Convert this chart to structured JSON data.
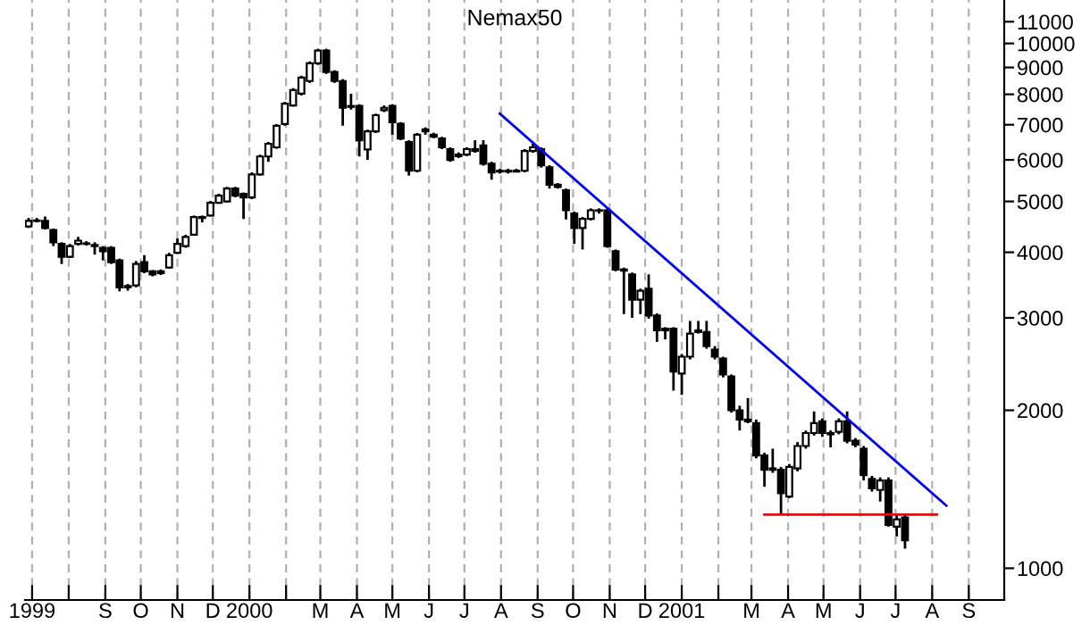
{
  "chart_data": {
    "type": "candlestick",
    "title": "Nemax50",
    "log": "y",
    "grid": "x",
    "legend": false,
    "xlim": [
      "1999-06-25",
      "2001-10-01"
    ],
    "xticks": [
      {
        "value": "1999-07-01",
        "label": "1999"
      },
      {
        "value": "1999-08-01",
        "label": null
      },
      {
        "value": "1999-09-01",
        "label": "S"
      },
      {
        "value": "1999-10-01",
        "label": "O"
      },
      {
        "value": "1999-11-01",
        "label": "N"
      },
      {
        "value": "1999-12-01",
        "label": "D"
      },
      {
        "value": "2000-01-01",
        "label": "2000"
      },
      {
        "value": "2000-02-01",
        "label": null
      },
      {
        "value": "2000-03-01",
        "label": "M"
      },
      {
        "value": "2000-04-01",
        "label": "A"
      },
      {
        "value": "2000-05-01",
        "label": "M"
      },
      {
        "value": "2000-06-01",
        "label": "J"
      },
      {
        "value": "2000-07-01",
        "label": "J"
      },
      {
        "value": "2000-08-01",
        "label": "A"
      },
      {
        "value": "2000-09-01",
        "label": "S"
      },
      {
        "value": "2000-10-01",
        "label": "O"
      },
      {
        "value": "2000-11-01",
        "label": "N"
      },
      {
        "value": "2000-12-01",
        "label": "D"
      },
      {
        "value": "2001-01-01",
        "label": "2001"
      },
      {
        "value": "2001-02-01",
        "label": null
      },
      {
        "value": "2001-03-01",
        "label": "M"
      },
      {
        "value": "2001-04-01",
        "label": "A"
      },
      {
        "value": "2001-05-01",
        "label": "M"
      },
      {
        "value": "2001-06-01",
        "label": "J"
      },
      {
        "value": "2001-07-01",
        "label": "J"
      },
      {
        "value": "2001-08-01",
        "label": "A"
      },
      {
        "value": "2001-09-01",
        "label": "S"
      }
    ],
    "ylim": [
      870,
      12100
    ],
    "yticks": [
      1000,
      2000,
      3000,
      4000,
      5000,
      6000,
      7000,
      8000,
      9000,
      10000,
      11000
    ],
    "x": [
      "1999-06-28",
      "1999-07-05",
      "1999-07-12",
      "1999-07-19",
      "1999-07-26",
      "1999-08-02",
      "1999-08-09",
      "1999-08-16",
      "1999-08-23",
      "1999-08-30",
      "1999-09-06",
      "1999-09-13",
      "1999-09-20",
      "1999-09-27",
      "1999-10-04",
      "1999-10-11",
      "1999-10-18",
      "1999-10-25",
      "1999-11-01",
      "1999-11-08",
      "1999-11-15",
      "1999-11-22",
      "1999-11-29",
      "1999-12-06",
      "1999-12-13",
      "1999-12-20",
      "1999-12-27",
      "2000-01-03",
      "2000-01-10",
      "2000-01-17",
      "2000-01-24",
      "2000-01-31",
      "2000-02-07",
      "2000-02-14",
      "2000-02-21",
      "2000-02-28",
      "2000-03-06",
      "2000-03-13",
      "2000-03-20",
      "2000-03-27",
      "2000-04-03",
      "2000-04-10",
      "2000-04-17",
      "2000-04-24",
      "2000-05-01",
      "2000-05-08",
      "2000-05-15",
      "2000-05-22",
      "2000-05-29",
      "2000-06-05",
      "2000-06-12",
      "2000-06-19",
      "2000-06-26",
      "2000-07-03",
      "2000-07-10",
      "2000-07-17",
      "2000-07-24",
      "2000-07-31",
      "2000-08-07",
      "2000-08-14",
      "2000-08-21",
      "2000-08-28",
      "2000-09-04",
      "2000-09-11",
      "2000-09-18",
      "2000-09-25",
      "2000-10-02",
      "2000-10-09",
      "2000-10-16",
      "2000-10-23",
      "2000-10-30",
      "2000-11-06",
      "2000-11-13",
      "2000-11-20",
      "2000-11-27",
      "2000-12-04",
      "2000-12-11",
      "2000-12-18",
      "2000-12-25",
      "2001-01-01",
      "2001-01-08",
      "2001-01-15",
      "2001-01-22",
      "2001-01-29",
      "2001-02-05",
      "2001-02-12",
      "2001-02-19",
      "2001-02-26",
      "2001-03-05",
      "2001-03-12",
      "2001-03-19",
      "2001-03-26",
      "2001-04-02",
      "2001-04-09",
      "2001-04-16",
      "2001-04-23",
      "2001-04-30",
      "2001-05-07",
      "2001-05-14",
      "2001-05-21",
      "2001-05-28",
      "2001-06-04",
      "2001-06-11",
      "2001-06-18",
      "2001-06-25",
      "2001-07-02",
      "2001-07-09"
    ],
    "ohlc": [
      [
        4480,
        4650,
        4450,
        4590
      ],
      [
        4590,
        4650,
        4560,
        4600
      ],
      [
        4590,
        4680,
        4420,
        4450
      ],
      [
        4410,
        4440,
        4110,
        4180
      ],
      [
        4150,
        4180,
        3800,
        3920
      ],
      [
        3920,
        4150,
        3900,
        4110
      ],
      [
        4150,
        4280,
        4120,
        4210
      ],
      [
        4160,
        4200,
        4120,
        4150
      ],
      [
        4130,
        4180,
        3960,
        4110
      ],
      [
        4080,
        4110,
        3860,
        4020
      ],
      [
        4080,
        4110,
        3800,
        3830
      ],
      [
        3860,
        3890,
        3370,
        3430
      ],
      [
        3430,
        3480,
        3380,
        3450
      ],
      [
        3460,
        3850,
        3430,
        3800
      ],
      [
        3830,
        3950,
        3650,
        3680
      ],
      [
        3680,
        3700,
        3600,
        3630
      ],
      [
        3650,
        3710,
        3620,
        3680
      ],
      [
        3740,
        3990,
        3720,
        3950
      ],
      [
        3990,
        4250,
        3970,
        4150
      ],
      [
        4110,
        4320,
        4080,
        4280
      ],
      [
        4320,
        4700,
        4300,
        4670
      ],
      [
        4670,
        4700,
        4560,
        4650
      ],
      [
        4700,
        5010,
        4680,
        4970
      ],
      [
        4970,
        5170,
        4950,
        5130
      ],
      [
        5000,
        5330,
        4980,
        5290
      ],
      [
        5290,
        5330,
        5090,
        5130
      ],
      [
        5170,
        5200,
        4630,
        5090
      ],
      [
        5090,
        5680,
        5050,
        5630
      ],
      [
        5630,
        6140,
        5600,
        6090
      ],
      [
        6090,
        6490,
        5950,
        6440
      ],
      [
        6340,
        7020,
        6300,
        6970
      ],
      [
        7020,
        7740,
        6970,
        7680
      ],
      [
        7620,
        8220,
        7580,
        8150
      ],
      [
        8020,
        8680,
        7960,
        8610
      ],
      [
        8480,
        9240,
        8410,
        9170
      ],
      [
        9170,
        9770,
        9100,
        9690
      ],
      [
        9690,
        9770,
        8750,
        8820
      ],
      [
        8820,
        8890,
        8410,
        8480
      ],
      [
        8480,
        8550,
        6970,
        7540
      ],
      [
        7600,
        8020,
        7480,
        7570
      ],
      [
        7600,
        7660,
        6090,
        6540
      ],
      [
        6280,
        6850,
        6000,
        6800
      ],
      [
        6800,
        7350,
        6750,
        7300
      ],
      [
        7460,
        7620,
        7400,
        7540
      ],
      [
        7600,
        7660,
        6700,
        7080
      ],
      [
        7030,
        7080,
        6540,
        6590
      ],
      [
        6490,
        6540,
        5600,
        5720
      ],
      [
        5720,
        6750,
        5680,
        6700
      ],
      [
        6800,
        6920,
        6700,
        6860
      ],
      [
        6700,
        6760,
        6600,
        6640
      ],
      [
        6590,
        6640,
        6290,
        6340
      ],
      [
        6290,
        6340,
        5950,
        6000
      ],
      [
        6140,
        6200,
        6050,
        6100
      ],
      [
        6140,
        6340,
        6100,
        6290
      ],
      [
        6240,
        6540,
        6190,
        6290
      ],
      [
        6390,
        6540,
        5850,
        5900
      ],
      [
        5900,
        5950,
        5500,
        5680
      ],
      [
        5720,
        5770,
        5650,
        5700
      ],
      [
        5700,
        5770,
        5650,
        5720
      ],
      [
        5720,
        5770,
        5680,
        5700
      ],
      [
        5720,
        6290,
        5680,
        6240
      ],
      [
        6240,
        6440,
        6190,
        6340
      ],
      [
        6290,
        6340,
        5800,
        5860
      ],
      [
        5810,
        5860,
        5290,
        5380
      ],
      [
        5380,
        5420,
        5290,
        5330
      ],
      [
        5250,
        5290,
        4620,
        4810
      ],
      [
        4740,
        4780,
        4150,
        4450
      ],
      [
        4450,
        4670,
        4050,
        4630
      ],
      [
        4630,
        4850,
        4600,
        4810
      ],
      [
        4810,
        4850,
        4740,
        4800
      ],
      [
        4810,
        4850,
        4080,
        4110
      ],
      [
        4020,
        4050,
        3680,
        3710
      ],
      [
        3710,
        3740,
        3050,
        3690
      ],
      [
        3630,
        3660,
        3000,
        3250
      ],
      [
        3250,
        3410,
        3050,
        3380
      ],
      [
        3410,
        3630,
        2990,
        3030
      ],
      [
        3030,
        3060,
        2700,
        2840
      ],
      [
        2860,
        2880,
        2730,
        2840
      ],
      [
        2860,
        2880,
        2180,
        2370
      ],
      [
        2350,
        2560,
        2140,
        2530
      ],
      [
        2530,
        2960,
        2500,
        2800
      ],
      [
        2820,
        2960,
        2800,
        2840
      ],
      [
        2820,
        2960,
        2620,
        2650
      ],
      [
        2610,
        2650,
        2500,
        2530
      ],
      [
        2510,
        2530,
        2310,
        2340
      ],
      [
        2320,
        2340,
        1980,
        2000
      ],
      [
        2000,
        2040,
        1830,
        1920
      ],
      [
        1920,
        2110,
        1890,
        1905
      ],
      [
        1890,
        1920,
        1620,
        1640
      ],
      [
        1640,
        1660,
        1430,
        1540
      ],
      [
        1550,
        1690,
        1520,
        1540
      ],
      [
        1540,
        1560,
        1265,
        1390
      ],
      [
        1370,
        1580,
        1360,
        1560
      ],
      [
        1550,
        1740,
        1530,
        1710
      ],
      [
        1710,
        1830,
        1690,
        1810
      ],
      [
        1810,
        1990,
        1790,
        1890
      ],
      [
        1905,
        1930,
        1780,
        1810
      ],
      [
        1810,
        1830,
        1700,
        1800
      ],
      [
        1820,
        1930,
        1800,
        1905
      ],
      [
        1905,
        1990,
        1730,
        1750
      ],
      [
        1750,
        1770,
        1700,
        1720
      ],
      [
        1690,
        1710,
        1470,
        1505
      ],
      [
        1480,
        1500,
        1400,
        1420
      ],
      [
        1410,
        1490,
        1340,
        1470
      ],
      [
        1470,
        1490,
        1200,
        1210
      ],
      [
        1200,
        1265,
        1150,
        1240
      ],
      [
        1250,
        1270,
        1090,
        1130
      ]
    ],
    "series": [
      {
        "type": "line",
        "color": "#0000ff",
        "x": [
          "2000-07-31",
          "2001-08-13"
        ],
        "values": [
          7350,
          1316
        ]
      },
      {
        "type": "line",
        "color": "#ff0000",
        "x": [
          "2001-03-12",
          "2001-08-05"
        ],
        "values": [
          1265,
          1265
        ]
      }
    ]
  }
}
